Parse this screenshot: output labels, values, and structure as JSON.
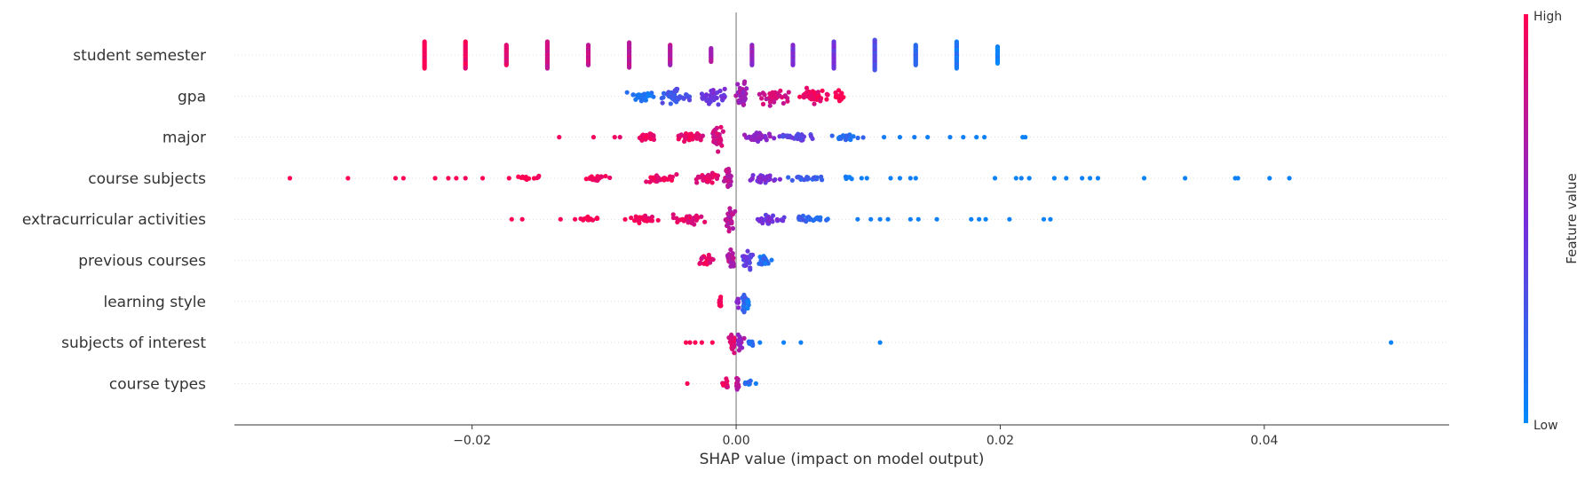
{
  "chart_data": {
    "type": "scatter",
    "subtype": "shap-beeswarm-summary",
    "title": "",
    "xlabel": "SHAP value (impact on model output)",
    "xlim": [
      -0.038,
      0.054
    ],
    "xticks": [
      {
        "value": -0.02,
        "label": "−0.02"
      },
      {
        "value": 0.0,
        "label": "0.00"
      },
      {
        "value": 0.02,
        "label": "0.02"
      },
      {
        "value": 0.04,
        "label": "0.04"
      }
    ],
    "zero_line": true,
    "colorbar": {
      "label": "Feature value",
      "high_label": "High",
      "low_label": "Low",
      "low_color": "#008bfb",
      "mid_color": "#7a2bd9",
      "high_color": "#ff0052"
    },
    "features": [
      {
        "name": "student semester",
        "clusters": [
          {
            "x": -0.0236,
            "spread": 0,
            "thick": 1.6,
            "count": 24,
            "v": 1.0
          },
          {
            "x": -0.0205,
            "spread": 0,
            "thick": 1.6,
            "count": 24,
            "v": 0.94
          },
          {
            "x": -0.0174,
            "spread": 0,
            "thick": 1.2,
            "count": 20,
            "v": 0.87
          },
          {
            "x": -0.0143,
            "spread": 0,
            "thick": 1.6,
            "count": 24,
            "v": 0.82
          },
          {
            "x": -0.0112,
            "spread": 0,
            "thick": 1.2,
            "count": 22,
            "v": 0.78
          },
          {
            "x": -0.0081,
            "spread": 0,
            "thick": 1.5,
            "count": 22,
            "v": 0.74
          },
          {
            "x": -0.005,
            "spread": 0,
            "thick": 1.2,
            "count": 22,
            "v": 0.7
          },
          {
            "x": -0.0019,
            "spread": 0,
            "thick": 0.8,
            "count": 16,
            "v": 0.66
          },
          {
            "x": 0.0012,
            "spread": 0,
            "thick": 1.2,
            "count": 22,
            "v": 0.62
          },
          {
            "x": 0.0043,
            "spread": 0,
            "thick": 1.2,
            "count": 22,
            "v": 0.52
          },
          {
            "x": 0.0074,
            "spread": 0,
            "thick": 1.6,
            "count": 24,
            "v": 0.45
          },
          {
            "x": 0.0105,
            "spread": 0,
            "thick": 1.8,
            "count": 26,
            "v": 0.33
          },
          {
            "x": 0.0136,
            "spread": 0,
            "thick": 1.2,
            "count": 22,
            "v": 0.18
          },
          {
            "x": 0.0167,
            "spread": 0,
            "thick": 1.6,
            "count": 24,
            "v": 0.12
          },
          {
            "x": 0.0198,
            "spread": 0,
            "thick": 1.0,
            "count": 20,
            "v": 0.05
          }
        ],
        "outliers": []
      },
      {
        "name": "gpa",
        "clusters": [
          {
            "x": -0.0072,
            "spread": 0.0014,
            "thick": 0.55,
            "count": 25,
            "v": 0.12
          },
          {
            "x": -0.0045,
            "spread": 0.0016,
            "thick": 0.75,
            "count": 40,
            "v": 0.28
          },
          {
            "x": -0.0018,
            "spread": 0.0013,
            "thick": 0.85,
            "count": 40,
            "v": 0.48
          },
          {
            "x": 0.0004,
            "spread": 0.0006,
            "thick": 1.3,
            "count": 40,
            "v": 0.65
          },
          {
            "x": 0.0028,
            "spread": 0.0016,
            "thick": 0.85,
            "count": 40,
            "v": 0.8
          },
          {
            "x": 0.0058,
            "spread": 0.0016,
            "thick": 0.8,
            "count": 40,
            "v": 0.92
          },
          {
            "x": 0.0078,
            "spread": 0.0006,
            "thick": 0.6,
            "count": 15,
            "v": 1.0
          }
        ],
        "outliers": []
      },
      {
        "name": "major",
        "clusters": [
          {
            "x": -0.0066,
            "spread": 0.0012,
            "thick": 0.35,
            "count": 25,
            "v": 0.95
          },
          {
            "x": -0.0036,
            "spread": 0.0015,
            "thick": 0.45,
            "count": 35,
            "v": 0.9
          },
          {
            "x": -0.0014,
            "spread": 0.0005,
            "thick": 1.25,
            "count": 30,
            "v": 0.82
          },
          {
            "x": 0.0018,
            "spread": 0.0016,
            "thick": 0.4,
            "count": 35,
            "v": 0.6
          },
          {
            "x": 0.0045,
            "spread": 0.0018,
            "thick": 0.35,
            "count": 30,
            "v": 0.38
          },
          {
            "x": 0.0082,
            "spread": 0.002,
            "thick": 0.28,
            "count": 22,
            "v": 0.15
          }
        ],
        "outliers": [
          {
            "x": -0.0134,
            "v": 0.95
          },
          {
            "x": -0.0108,
            "v": 0.96
          },
          {
            "x": -0.0092,
            "v": 0.95
          },
          {
            "x": -0.0088,
            "v": 0.9
          },
          {
            "x": 0.0112,
            "v": 0.08
          },
          {
            "x": 0.0124,
            "v": 0.07
          },
          {
            "x": 0.0135,
            "v": 0.08
          },
          {
            "x": 0.0145,
            "v": 0.06
          },
          {
            "x": 0.0162,
            "v": 0.07
          },
          {
            "x": 0.0172,
            "v": 0.06
          },
          {
            "x": 0.0182,
            "v": 0.05
          },
          {
            "x": 0.0188,
            "v": 0.05
          },
          {
            "x": 0.0217,
            "v": 0.04
          },
          {
            "x": 0.0219,
            "v": 0.05
          }
        ]
      },
      {
        "name": "course subjects",
        "clusters": [
          {
            "x": -0.0155,
            "spread": 0.0015,
            "thick": 0.25,
            "count": 14,
            "v": 1.0
          },
          {
            "x": -0.0105,
            "spread": 0.0018,
            "thick": 0.3,
            "count": 20,
            "v": 0.98
          },
          {
            "x": -0.0058,
            "spread": 0.0018,
            "thick": 0.4,
            "count": 30,
            "v": 0.95
          },
          {
            "x": -0.0023,
            "spread": 0.0012,
            "thick": 0.6,
            "count": 30,
            "v": 0.88
          },
          {
            "x": -0.0006,
            "spread": 0.0004,
            "thick": 1.3,
            "count": 30,
            "v": 0.75
          },
          {
            "x": 0.0022,
            "spread": 0.0014,
            "thick": 0.45,
            "count": 30,
            "v": 0.5
          },
          {
            "x": 0.0055,
            "spread": 0.0018,
            "thick": 0.32,
            "count": 24,
            "v": 0.25
          },
          {
            "x": 0.0085,
            "spread": 0.0006,
            "thick": 0.25,
            "count": 6,
            "v": 0.12
          }
        ],
        "outliers": [
          {
            "x": -0.0338,
            "v": 1.0
          },
          {
            "x": -0.0294,
            "v": 1.0
          },
          {
            "x": -0.0258,
            "v": 0.98
          },
          {
            "x": -0.0252,
            "v": 0.99
          },
          {
            "x": -0.0228,
            "v": 1.0
          },
          {
            "x": -0.0218,
            "v": 0.98
          },
          {
            "x": -0.0212,
            "v": 1.0
          },
          {
            "x": -0.0205,
            "v": 0.97
          },
          {
            "x": -0.0192,
            "v": 1.0
          },
          {
            "x": -0.0172,
            "v": 0.98
          },
          {
            "x": 0.0095,
            "v": 0.06
          },
          {
            "x": 0.0099,
            "v": 0.06
          },
          {
            "x": 0.0117,
            "v": 0.05
          },
          {
            "x": 0.0124,
            "v": 0.05
          },
          {
            "x": 0.0132,
            "v": 0.06
          },
          {
            "x": 0.0136,
            "v": 0.05
          },
          {
            "x": 0.0196,
            "v": 0.05
          },
          {
            "x": 0.0212,
            "v": 0.04
          },
          {
            "x": 0.0216,
            "v": 0.06
          },
          {
            "x": 0.0222,
            "v": 0.05
          },
          {
            "x": 0.0241,
            "v": 0.04
          },
          {
            "x": 0.025,
            "v": 0.05
          },
          {
            "x": 0.0262,
            "v": 0.05
          },
          {
            "x": 0.0268,
            "v": 0.04
          },
          {
            "x": 0.0274,
            "v": 0.05
          },
          {
            "x": 0.0309,
            "v": 0.04
          },
          {
            "x": 0.034,
            "v": 0.05
          },
          {
            "x": 0.0378,
            "v": 0.04
          },
          {
            "x": 0.038,
            "v": 0.05
          },
          {
            "x": 0.0404,
            "v": 0.04
          },
          {
            "x": 0.0419,
            "v": 0.05
          }
        ]
      },
      {
        "name": "extracurricular activities",
        "clusters": [
          {
            "x": -0.0112,
            "spread": 0.0012,
            "thick": 0.25,
            "count": 14,
            "v": 1.0
          },
          {
            "x": -0.0072,
            "spread": 0.0016,
            "thick": 0.35,
            "count": 26,
            "v": 0.97
          },
          {
            "x": -0.0036,
            "spread": 0.0015,
            "thick": 0.5,
            "count": 30,
            "v": 0.92
          },
          {
            "x": -0.0005,
            "spread": 0.0005,
            "thick": 1.2,
            "count": 30,
            "v": 0.75
          },
          {
            "x": 0.0025,
            "spread": 0.0015,
            "thick": 0.45,
            "count": 30,
            "v": 0.45
          },
          {
            "x": 0.0058,
            "spread": 0.0018,
            "thick": 0.3,
            "count": 24,
            "v": 0.2
          }
        ],
        "outliers": [
          {
            "x": -0.017,
            "v": 1.0
          },
          {
            "x": -0.0162,
            "v": 0.98
          },
          {
            "x": -0.0133,
            "v": 1.0
          },
          {
            "x": -0.0122,
            "v": 0.97
          },
          {
            "x": 0.0092,
            "v": 0.08
          },
          {
            "x": 0.0102,
            "v": 0.07
          },
          {
            "x": 0.0109,
            "v": 0.06
          },
          {
            "x": 0.0115,
            "v": 0.07
          },
          {
            "x": 0.0132,
            "v": 0.06
          },
          {
            "x": 0.0138,
            "v": 0.05
          },
          {
            "x": 0.0152,
            "v": 0.06
          },
          {
            "x": 0.0178,
            "v": 0.05
          },
          {
            "x": 0.0184,
            "v": 0.05
          },
          {
            "x": 0.0189,
            "v": 0.04
          },
          {
            "x": 0.0207,
            "v": 0.05
          },
          {
            "x": 0.0233,
            "v": 0.04
          },
          {
            "x": 0.0238,
            "v": 0.05
          }
        ]
      },
      {
        "name": "previous courses",
        "clusters": [
          {
            "x": -0.0022,
            "spread": 0.0008,
            "thick": 0.55,
            "count": 24,
            "v": 0.9
          },
          {
            "x": -0.0004,
            "spread": 0.0005,
            "thick": 1.0,
            "count": 24,
            "v": 0.72
          },
          {
            "x": 0.0008,
            "spread": 0.0006,
            "thick": 0.9,
            "count": 26,
            "v": 0.4
          },
          {
            "x": 0.0022,
            "spread": 0.0007,
            "thick": 0.5,
            "count": 20,
            "v": 0.15
          }
        ],
        "outliers": []
      },
      {
        "name": "learning style",
        "clusters": [
          {
            "x": -0.0012,
            "spread": 0.00015,
            "thick": 0.85,
            "count": 14,
            "v": 0.97
          },
          {
            "x": 0.0001,
            "spread": 0.0002,
            "thick": 0.5,
            "count": 10,
            "v": 0.55
          },
          {
            "x": 0.0006,
            "spread": 0.0002,
            "thick": 1.0,
            "count": 16,
            "v": 0.2
          },
          {
            "x": 0.0009,
            "spread": 0.00015,
            "thick": 0.6,
            "count": 8,
            "v": 0.08
          }
        ],
        "outliers": []
      },
      {
        "name": "subjects of interest",
        "clusters": [
          {
            "x": -0.0003,
            "spread": 0.0004,
            "thick": 0.9,
            "count": 22,
            "v": 0.88
          },
          {
            "x": 0.0003,
            "spread": 0.0004,
            "thick": 0.8,
            "count": 16,
            "v": 0.65
          },
          {
            "x": 0.0011,
            "spread": 0.0003,
            "thick": 0.25,
            "count": 8,
            "v": 0.15
          }
        ],
        "outliers": [
          {
            "x": -0.0038,
            "v": 1.0
          },
          {
            "x": -0.0035,
            "v": 0.98
          },
          {
            "x": -0.0031,
            "v": 1.0
          },
          {
            "x": -0.0026,
            "v": 0.98
          },
          {
            "x": -0.0018,
            "v": 0.99
          },
          {
            "x": 0.0018,
            "v": 0.06
          },
          {
            "x": 0.0036,
            "v": 0.05
          },
          {
            "x": 0.0049,
            "v": 0.05
          },
          {
            "x": 0.0109,
            "v": 0.04
          },
          {
            "x": 0.0496,
            "v": 0.04
          }
        ]
      },
      {
        "name": "course types",
        "clusters": [
          {
            "x": -0.0008,
            "spread": 0.0004,
            "thick": 0.45,
            "count": 14,
            "v": 0.9
          },
          {
            "x": 0.0001,
            "spread": 0.0002,
            "thick": 1.0,
            "count": 16,
            "v": 0.72
          },
          {
            "x": 0.0009,
            "spread": 0.0004,
            "thick": 0.35,
            "count": 10,
            "v": 0.15
          }
        ],
        "outliers": [
          {
            "x": -0.0037,
            "v": 1.0
          },
          {
            "x": 0.0015,
            "v": 0.06
          }
        ]
      }
    ]
  }
}
